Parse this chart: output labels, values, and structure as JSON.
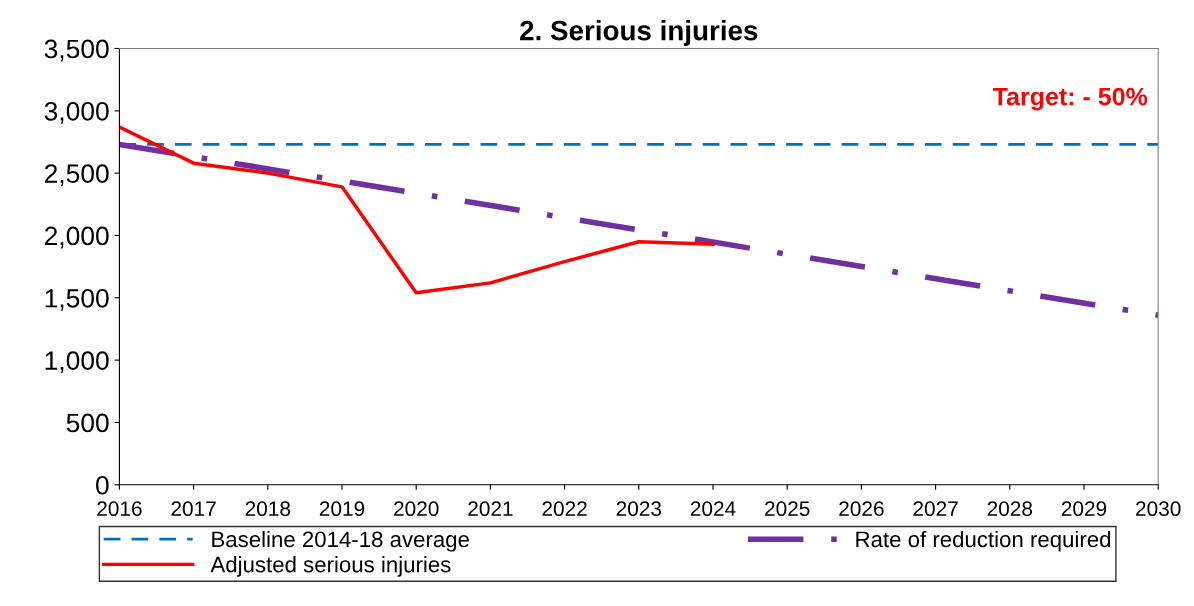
{
  "chart_data": {
    "type": "line",
    "title": "2. Serious injuries",
    "xlim": [
      2016,
      2030
    ],
    "xticks": [
      2016,
      2017,
      2018,
      2019,
      2020,
      2021,
      2022,
      2023,
      2024,
      2025,
      2026,
      2027,
      2028,
      2029,
      2030
    ],
    "ylim": [
      0,
      3500
    ],
    "yticks": [
      {
        "value": 0,
        "label": "0"
      },
      {
        "value": 500,
        "label": "500"
      },
      {
        "value": 1000,
        "label": "1,000"
      },
      {
        "value": 1500,
        "label": "1,500"
      },
      {
        "value": 2000,
        "label": "2,000"
      },
      {
        "value": 2500,
        "label": "2,500"
      },
      {
        "value": 3000,
        "label": "3,000"
      },
      {
        "value": 3500,
        "label": "3,500"
      }
    ],
    "grid": false,
    "legend": "bottom",
    "marker": "none",
    "annotations": [
      "Target: - 50%"
    ],
    "series": [
      {
        "name": "Baseline 2014-18 average",
        "color": "#0070c0",
        "line_style": "dashed",
        "x": [
          2016,
          2030
        ],
        "values": [
          2730,
          2730
        ]
      },
      {
        "name": "Rate of reduction required",
        "color": "#7030a0",
        "line_style": "dashdot",
        "x": [
          2016,
          2030
        ],
        "values": [
          2730,
          1360
        ]
      },
      {
        "name": "Adjusted serious injuries",
        "color": "#ff0000",
        "line_style": "solid",
        "x": [
          2016,
          2017,
          2018,
          2019,
          2020,
          2021,
          2022,
          2023,
          2024
        ],
        "values": [
          2870,
          2580,
          2500,
          2390,
          1540,
          1620,
          1790,
          1950,
          1930
        ]
      }
    ]
  }
}
